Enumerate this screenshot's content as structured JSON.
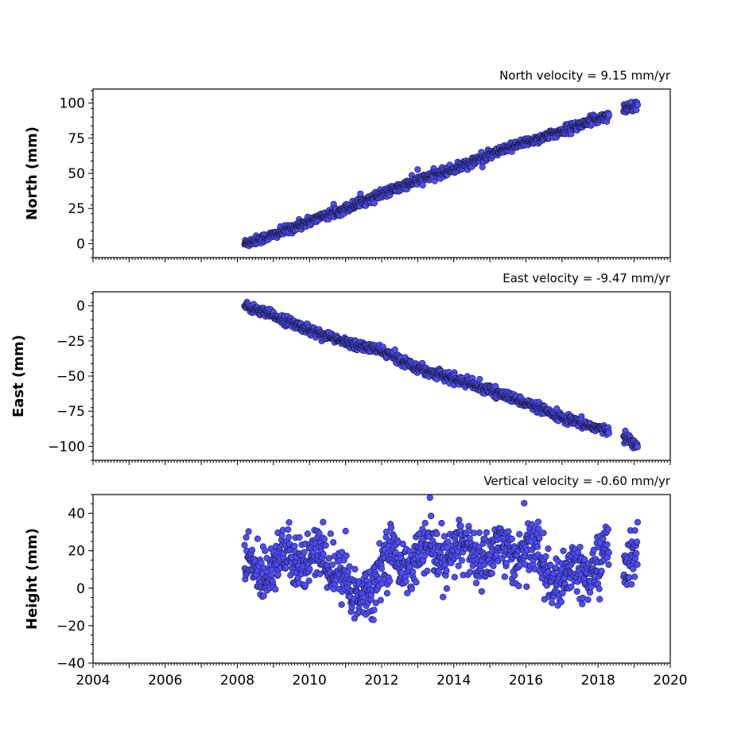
{
  "chart_data": [
    {
      "type": "scatter",
      "title": "North velocity = 9.15 mm/yr",
      "xlabel": "",
      "ylabel": "North (mm)",
      "xlim": [
        2004,
        2020
      ],
      "ylim": [
        -10,
        110
      ],
      "yticks": [
        0,
        25,
        50,
        75,
        100
      ],
      "show_xticklabels": false,
      "grid": false,
      "color": "#4d4dff",
      "velocity_mm_per_yr": 9.15,
      "data_start": 2008.2,
      "data_end": 2019.1,
      "gap": [
        2018.3,
        2018.7
      ],
      "series": [
        {
          "x": [
            2008.2,
            2009.0,
            2010.0,
            2011.0,
            2012.0,
            2013.0,
            2014.0,
            2015.0,
            2016.0,
            2017.0,
            2018.0,
            2018.7,
            2019.1
          ],
          "y": [
            0,
            6,
            16,
            25,
            35,
            45,
            53,
            63,
            72,
            80,
            89,
            96,
            99
          ]
        }
      ]
    },
    {
      "type": "scatter",
      "title": "East velocity = -9.47 mm/yr",
      "xlabel": "",
      "ylabel": "East (mm)",
      "xlim": [
        2004,
        2020
      ],
      "ylim": [
        -110,
        10
      ],
      "yticks": [
        0,
        -25,
        -50,
        -75,
        -100
      ],
      "show_xticklabels": false,
      "grid": false,
      "color": "#4d4dff",
      "velocity_mm_per_yr": -9.47,
      "data_start": 2008.2,
      "data_end": 2019.1,
      "gap": [
        2018.3,
        2018.7
      ],
      "series": [
        {
          "x": [
            2008.2,
            2009.0,
            2010.0,
            2011.0,
            2012.0,
            2013.0,
            2014.0,
            2015.0,
            2016.0,
            2017.0,
            2018.0,
            2018.7,
            2019.1
          ],
          "y": [
            0,
            -7,
            -17,
            -26,
            -32,
            -44,
            -52,
            -60,
            -69,
            -80,
            -87,
            -92,
            -100
          ]
        }
      ]
    },
    {
      "type": "scatter",
      "title": "Vertical velocity = -0.60 mm/yr",
      "xlabel": "",
      "ylabel": "Height (mm)",
      "xlim": [
        2004,
        2020
      ],
      "ylim": [
        -40,
        50
      ],
      "yticks": [
        -40,
        -20,
        0,
        20,
        40
      ],
      "xticks": [
        2004,
        2006,
        2008,
        2010,
        2012,
        2014,
        2016,
        2018,
        2020
      ],
      "show_xticklabels": true,
      "grid": false,
      "color": "#4d4dff",
      "velocity_mm_per_yr": -0.6,
      "data_start": 2008.2,
      "data_end": 2019.1,
      "gap": [
        2018.3,
        2018.7
      ],
      "series": [
        {
          "x": [
            2008.2,
            2009.0,
            2010.0,
            2011.0,
            2011.2,
            2012.0,
            2013.0,
            2014.0,
            2015.0,
            2016.0,
            2017.0,
            2018.0,
            2018.8,
            2019.1
          ],
          "y": [
            8,
            14,
            16,
            10,
            -12,
            14,
            16,
            20,
            18,
            22,
            2,
            14,
            20,
            16
          ]
        }
      ]
    }
  ]
}
